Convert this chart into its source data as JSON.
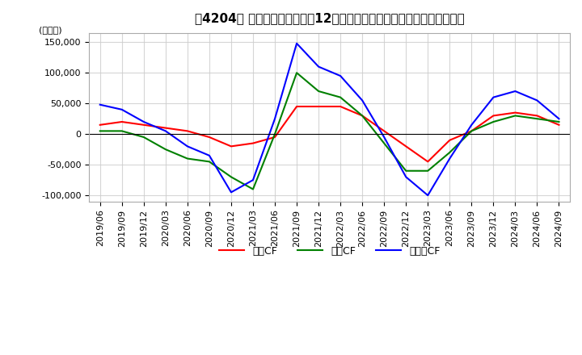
{
  "title": "［4204］ キャッシュフローの12か月移動合計の対前年同期増減額の推移",
  "ylabel": "(百万円)",
  "ylim": [
    -110000,
    165000
  ],
  "yticks": [
    -100000,
    -50000,
    0,
    50000,
    100000,
    150000
  ],
  "legend_labels": [
    "営業CF",
    "投資CF",
    "フリーCF"
  ],
  "line_colors": [
    "#ff0000",
    "#008000",
    "#0000ff"
  ],
  "dates": [
    "2019/06",
    "2019/09",
    "2019/12",
    "2020/03",
    "2020/06",
    "2020/09",
    "2020/12",
    "2021/03",
    "2021/06",
    "2021/09",
    "2021/12",
    "2022/03",
    "2022/06",
    "2022/09",
    "2022/12",
    "2023/03",
    "2023/06",
    "2023/09",
    "2023/12",
    "2024/03",
    "2024/06",
    "2024/09"
  ],
  "operating_cf": [
    15000,
    20000,
    15000,
    10000,
    5000,
    -5000,
    -20000,
    -15000,
    -5000,
    45000,
    45000,
    45000,
    30000,
    5000,
    -20000,
    -45000,
    -10000,
    5000,
    30000,
    35000,
    30000,
    15000
  ],
  "investing_cf": [
    5000,
    5000,
    -5000,
    -25000,
    -40000,
    -45000,
    -70000,
    -90000,
    0,
    100000,
    70000,
    60000,
    30000,
    -15000,
    -60000,
    -60000,
    -30000,
    5000,
    20000,
    30000,
    25000,
    20000
  ],
  "free_cf": [
    48000,
    40000,
    20000,
    5000,
    -20000,
    -35000,
    -95000,
    -75000,
    25000,
    148000,
    110000,
    95000,
    55000,
    -5000,
    -70000,
    -100000,
    -40000,
    15000,
    60000,
    70000,
    55000,
    25000
  ],
  "background_color": "#ffffff",
  "grid_color": "#cccccc",
  "title_fontsize": 11,
  "axis_fontsize": 8
}
